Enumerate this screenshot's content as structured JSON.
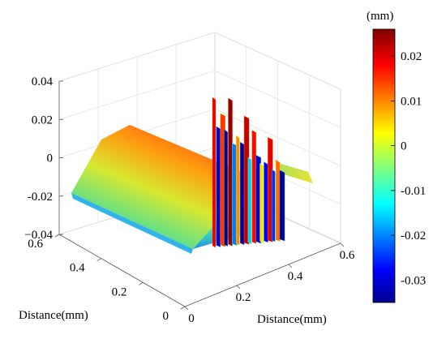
{
  "chart_data": {
    "type": "surface3d",
    "title": "",
    "z_axis": {
      "label": "",
      "range": [
        -0.04,
        0.04
      ],
      "ticks": [
        {
          "value": 0.04,
          "label": "0.04"
        },
        {
          "value": 0.02,
          "label": "0.02"
        },
        {
          "value": 0,
          "label": "0"
        },
        {
          "value": -0.02,
          "label": "-0.02"
        },
        {
          "value": -0.04,
          "label": "−0.04"
        }
      ]
    },
    "y_axis": {
      "label": "Distance(mm)",
      "range": [
        0,
        0.6
      ],
      "ticks": [
        {
          "value": 0.6,
          "label": "0.6"
        },
        {
          "value": 0.4,
          "label": "0.4"
        },
        {
          "value": 0.2,
          "label": "0.2"
        },
        {
          "value": 0,
          "label": "0"
        }
      ]
    },
    "x_axis": {
      "label": "Distance(mm)",
      "range": [
        0,
        0.6
      ],
      "ticks": [
        {
          "value": 0,
          "label": "0"
        },
        {
          "value": 0.2,
          "label": "0.2"
        },
        {
          "value": 0.4,
          "label": "0.4"
        },
        {
          "value": 0.6,
          "label": "0.6"
        }
      ]
    },
    "colorbar": {
      "unit": "(mm)",
      "range": [
        -0.035,
        0.026
      ],
      "colormap": "jet",
      "ticks": [
        {
          "value": 0.02,
          "label": "0.02"
        },
        {
          "value": 0.01,
          "label": "0.01"
        },
        {
          "value": 0,
          "label": "0"
        },
        {
          "value": -0.01,
          "label": "-0.01"
        },
        {
          "value": -0.02,
          "label": "-0.02"
        },
        {
          "value": -0.03,
          "label": "-0.03"
        }
      ]
    },
    "surface": {
      "description_values": "sloped plateau rising from about -0.02 mm near y=0.6 to about 0.01 mm near y=0.1, followed by a region of spiky vertical features between x=0.15 and x=0.35 ranging from about -0.035 to 0.025 mm, and a thin flat tail near 0 to -0.005 mm beyond x=0.35",
      "plateau_profile": [
        {
          "y": 0.6,
          "z": -0.02
        },
        {
          "y": 0.5,
          "z": -0.012
        },
        {
          "y": 0.4,
          "z": -0.004
        },
        {
          "y": 0.3,
          "z": 0.003
        },
        {
          "y": 0.2,
          "z": 0.008
        },
        {
          "y": 0.1,
          "z": 0.011
        }
      ],
      "spike_values": [
        0.02,
        -0.03,
        0.015,
        -0.035,
        0.025,
        -0.02,
        0.01,
        -0.033,
        0.022,
        -0.015,
        0.018,
        -0.03,
        0.005,
        -0.028,
        0.02,
        -0.025,
        0.012,
        -0.034
      ],
      "tail_z": -0.004
    },
    "grid": true,
    "colors": {
      "jet_stops": [
        "#00008f",
        "#0000ff",
        "#00ffff",
        "#ffff00",
        "#ff0000",
        "#800000"
      ]
    }
  }
}
